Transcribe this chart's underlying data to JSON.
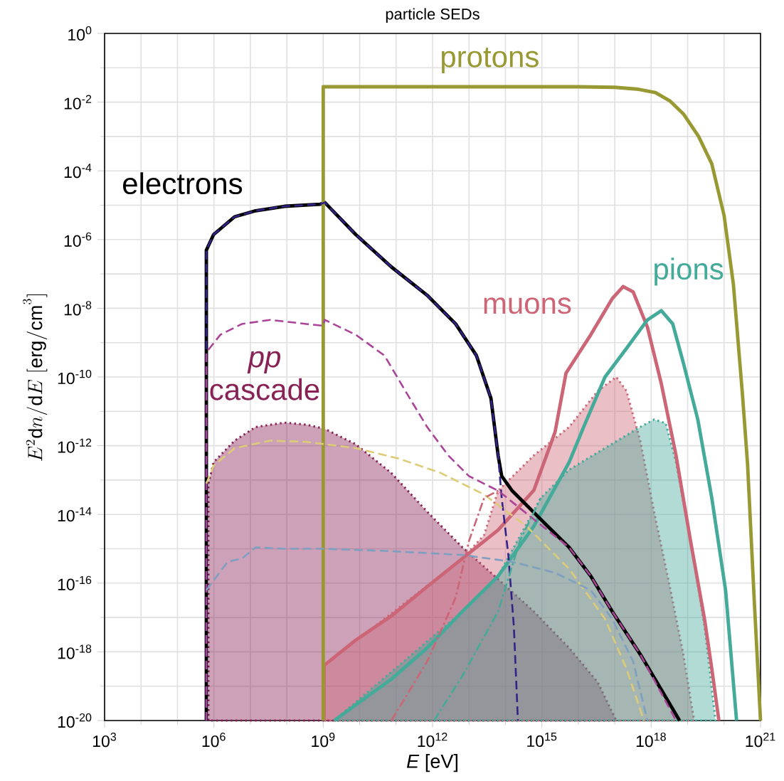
{
  "chart_data": {
    "type": "line",
    "title": "particle SEDs",
    "xlabel": "*E* [eV]",
    "ylabel": "E^{2}\\mathrm{d}n/\\mathrm{d}E\\ [\\mathrm{erg/cm}^{3}]",
    "log": "xy",
    "grid": true,
    "xlim": [
      1000.0,
      1e+21
    ],
    "xticks": [
      {
        "value": 1000.0,
        "label": "10$^{3}$"
      },
      {
        "value": 1000000.0,
        "label": "10$^{6}$"
      },
      {
        "value": 1000000000.0,
        "label": "10$^{9}$"
      },
      {
        "value": 1000000000000.0,
        "label": "10$^{12}$"
      },
      {
        "value": 1000000000000000.0,
        "label": "10$^{15}$"
      },
      {
        "value": 1e+18,
        "label": "10$^{18}$"
      },
      {
        "value": 1e+21,
        "label": "10$^{21}$"
      }
    ],
    "ylim": [
      1e-20,
      1
    ],
    "yticks": [
      {
        "value": 1e-20,
        "label": "10$^{-20}$"
      },
      {
        "value": 1e-18,
        "label": "10$^{-18}$"
      },
      {
        "value": 1e-16,
        "label": "10$^{-16}$"
      },
      {
        "value": 1e-14,
        "label": "10$^{-14}$"
      },
      {
        "value": 1e-12,
        "label": "10$^{-12}$"
      },
      {
        "value": 1e-10,
        "label": "10$^{-10}$"
      },
      {
        "value": 1e-08,
        "label": "10$^{-8}$"
      },
      {
        "value": 1e-06,
        "label": "10$^{-6}$"
      },
      {
        "value": 0.0001,
        "label": "10$^{-4}$"
      },
      {
        "value": 0.01,
        "label": "10$^{-2}$"
      },
      {
        "value": 1,
        "label": "10$^{0}$"
      }
    ],
    "series": [
      {
        "type": "area",
        "name": "*pp* cascade",
        "color": "#882255",
        "line_style": "dotted",
        "x": [
          710000.0,
          710000.0,
          980000.0,
          3700000.0,
          14000000.0,
          87000000.0,
          340000000.0,
          1100000000.0,
          7800000000.0,
          74000000000.0,
          710000000000.0,
          6600000000000.0,
          63000000000000.0,
          600000000000000.0,
          5600000000000000.0,
          3.4e+16,
          1.1e+17
        ],
        "values": [
          1e-20,
          7.9e-14,
          3.3e-13,
          1.4e-12,
          3.5e-12,
          4.7e-12,
          4.1e-12,
          3.1e-12,
          1.1e-12,
          1.6e-13,
          1.2e-14,
          1.1e-15,
          1.3e-16,
          1.5e-17,
          1.3e-18,
          1.3e-19,
          1e-20
        ]
      },
      {
        "type": "area",
        "color": "#cc6677",
        "line_style": "dotted",
        "x": [
          1050000000.0,
          1050000000.0,
          6600000000000.0,
          26000000000000.0,
          63000000000000.0,
          600000000000000.0,
          5600000000000000.0,
          3.4e+16,
          1.1e+17,
          2.1e+17,
          5e+17,
          1.2e+18,
          3.1e+18,
          7.6e+18,
          1.5e+19
        ],
        "values": [
          1e-20,
          4e-19,
          5.2e-16,
          2.5e-15,
          4.9e-14,
          5.2e-13,
          3.5e-12,
          3.9e-11,
          1e-10,
          3.9e-11,
          1.4e-12,
          1.2e-14,
          1e-16,
          8.5e-19,
          1e-20
        ]
      },
      {
        "type": "area",
        "color": "#44aa99",
        "line_style": "dotted",
        "x": [
          2000000000.0,
          6600000000000.0,
          63000000000000.0,
          930000000000000.0,
          5600000000000000.0,
          5.4e+16,
          5e+17,
          1.2e+18,
          2.5e+18,
          4.8e+18,
          1.2e+19,
          2.9e+19,
          5.8e+19
        ],
        "values": [
          1e-20,
          1.5e-17,
          1.6e-16,
          3e-14,
          2e-13,
          8.5e-13,
          3.5e-12,
          5.8e-12,
          4.5e-12,
          3.3e-13,
          1.7e-15,
          5.6e-18,
          1e-20
        ]
      },
      {
        "name": "muons",
        "color": "#cc6677",
        "line_style": "solid",
        "x": [
          1050000000.0,
          1050000000.0,
          7800000000.0,
          74000000000.0,
          710000000000.0,
          6600000000000.0,
          63000000000000.0,
          600000000000000.0,
          2300000000000000.0,
          4600000000000000.0,
          2.2e+16,
          8.5e+16,
          1.7e+17,
          3.2e+17,
          7.9e+17,
          1.9e+18,
          4.8e+18,
          1.2e+19,
          2.9e+19,
          4.6e+19,
          7.2e+19
        ],
        "values": [
          1e-20,
          4e-19,
          2.2e-18,
          1.1e-17,
          7.9e-17,
          5.2e-16,
          3.5e-15,
          5e-14,
          2.5e-12,
          1.3e-10,
          1.7e-09,
          1.9e-08,
          4.3e-08,
          3e-08,
          2.8e-09,
          6.3e-11,
          5.2e-13,
          1.7e-15,
          9.1e-18,
          3.2e-19,
          1e-20
        ]
      },
      {
        "name": "pions",
        "color": "#44aa99",
        "line_style": "solid",
        "x": [
          2000000000.0,
          74000000000.0,
          710000000000.0,
          6600000000000.0,
          63000000000000.0,
          600000000000000.0,
          5600000000000000.0,
          1.4e+16,
          5.4e+16,
          2.1e+17,
          7.9e+17,
          1.9e+18,
          3.9e+18,
          7.6e+18,
          1.9e+19,
          4.6e+19,
          1.1e+20,
          2.2e+20
        ],
        "values": [
          1e-20,
          1.6e-19,
          1.3e-18,
          1.5e-17,
          1.6e-16,
          4.5e-15,
          3.3e-13,
          3.5e-12,
          1e-10,
          6.8e-10,
          4.6e-09,
          8.5e-09,
          3.5e-09,
          2.6e-10,
          5.8e-12,
          3e-14,
          6.2e-17,
          1e-20
        ]
      },
      {
        "name": "electrons",
        "color": "#000000",
        "line_style": "solid",
        "x": [
          620000.0,
          620000.0,
          980000.0,
          3700000.0,
          14000000.0,
          87000000.0,
          830000000.0,
          1100000000.0,
          7800000000.0,
          74000000000.0,
          710000000000.0,
          4300000000000.0,
          16000000000000.0,
          40000000000000.0,
          63000000000000.0,
          79000000000000.0,
          150000000000000.0,
          930000000000000.0,
          5600000000000000.0,
          2.2e+16,
          8.5e+16,
          5e+17,
          1.9e+18,
          6e+18
        ],
        "values": [
          1e-20,
          4.9e-07,
          1.4e-06,
          4.6e-06,
          6.9e-06,
          9.3e-06,
          1.07e-05,
          1.2e-05,
          1.4e-06,
          1.6e-07,
          2.4e-08,
          3.5e-09,
          4.2e-10,
          2.4e-11,
          5.2e-13,
          1.3e-13,
          5e-14,
          7.2e-15,
          1.1e-15,
          1.6e-16,
          1.5e-17,
          8.5e-19,
          7.9e-20,
          1e-20
        ]
      },
      {
        "name": "protons",
        "color": "#999933",
        "line_style": "solid",
        "x": [
          1000000000.0,
          1000000000.0,
          1e+16,
          1e+17,
          4e+17,
          1.3e+18,
          3.2e+18,
          7.6e+18,
          2e+19,
          4.6e+19,
          1e+20,
          1.8e+20,
          3.2e+20,
          4.4e+20,
          6.8e+20,
          1e+21
        ],
        "values": [
          1e-20,
          0.028,
          0.028,
          0.027,
          0.024,
          0.019,
          0.011,
          0.0046,
          0.001,
          0.00016,
          5e-06,
          5e-08,
          3e-11,
          3e-13,
          2.5e-17,
          1e-20
        ]
      },
      {
        "color": "#332288",
        "line_style": "dashed",
        "x": [
          620000.0,
          620000.0,
          980000.0,
          3700000.0,
          14000000.0,
          87000000.0,
          830000000.0,
          1100000000.0,
          7800000000.0,
          74000000000.0,
          710000000000.0,
          4300000000000.0,
          16000000000000.0,
          40000000000000.0,
          63000000000000.0,
          79000000000000.0,
          120000000000000.0,
          170000000000000.0,
          220000000000000.0
        ],
        "values": [
          1e-20,
          4.9e-07,
          1.4e-06,
          4.6e-06,
          6.9e-06,
          9.3e-06,
          1.07e-05,
          1.2e-05,
          1.4e-06,
          1.6e-07,
          2.4e-08,
          3.5e-09,
          4.2e-10,
          2.4e-11,
          5.2e-13,
          3e-14,
          6.6e-16,
          5.6e-18,
          1e-20
        ]
      },
      {
        "color": "#aa4499",
        "line_style": "dashed",
        "x": [
          620000.0,
          620000.0,
          1500000.0,
          5900000.0,
          35000000.0,
          340000000.0,
          1000000000.0,
          1100000000.0,
          7800000000.0,
          48000000000.0,
          180000000000.0,
          710000000000.0,
          2700000000000.0,
          10000000000000.0,
          63000000000000.0,
          600000000000000.0,
          5600000000000000.0,
          2.2e+16,
          8.5e+16,
          5e+17,
          4.8e+18
        ],
        "values": [
          1e-20,
          5.2e-10,
          1.7e-09,
          3.5e-09,
          4.6e-09,
          3.5e-09,
          3.1e-09,
          4.6e-09,
          1.7e-09,
          4.2e-10,
          3.9e-11,
          3.5e-12,
          5.2e-13,
          1.3e-13,
          4.9e-14,
          7.2e-15,
          1.1e-15,
          1.6e-16,
          1.5e-17,
          8.5e-19,
          1e-20
        ]
      },
      {
        "color": "#ddcc77",
        "line_style": "dashed",
        "x": [
          620000.0,
          980000.0,
          3700000.0,
          35000000.0,
          340000000.0,
          7800000000.0,
          120000000000.0,
          1700000000000.0,
          26000000000000.0,
          380000000000000.0,
          5600000000000000.0,
          5.4e+16,
          2.1e+17,
          6.3e+17
        ],
        "values": [
          7.9e-14,
          2.6e-13,
          8.5e-13,
          1.4e-12,
          1.3e-12,
          8.5e-13,
          4.2e-13,
          1.6e-13,
          3.8e-14,
          4.5e-15,
          2.6e-16,
          9.1e-18,
          3.2e-19,
          1e-20
        ]
      },
      {
        "color": "#7f9fc0",
        "line_style": "dashed",
        "x": [
          620000.0,
          2400000.0,
          5900000.0,
          14000000.0,
          87000000.0,
          1100000000.0,
          74000000000.0,
          6600000000000.0,
          150000000000000.0,
          2300000000000000.0,
          2.2e+16,
          8.5e+16,
          3.2e+17,
          7.9e+17
        ],
        "values": [
          6.2e-17,
          4.2e-16,
          5.2e-16,
          1.1e-15,
          1e-15,
          1e-15,
          8.5e-16,
          6.6e-16,
          4.2e-16,
          2e-16,
          6.2e-17,
          9.1e-18,
          5.2e-19,
          1e-20
        ]
      },
      {
        "color": "#cc6677",
        "line_style": "dashdot",
        "x": [
          74000000000.0,
          710000000000.0,
          4300000000000.0,
          10000000000000.0,
          26000000000000.0,
          63000000000000.0
        ],
        "values": [
          1e-20,
          5.2e-19,
          3.8e-17,
          1.7e-15,
          3e-14,
          4.9e-14
        ]
      },
      {
        "color": "#44aa99",
        "line_style": "dashdot",
        "x": [
          1100000000000.0,
          6600000000000.0,
          63000000000000.0,
          250000000000000.0,
          930000000000000.0
        ],
        "values": [
          1e-20,
          2e-19,
          1.5e-17,
          1.7e-15,
          3e-14
        ]
      }
    ]
  }
}
